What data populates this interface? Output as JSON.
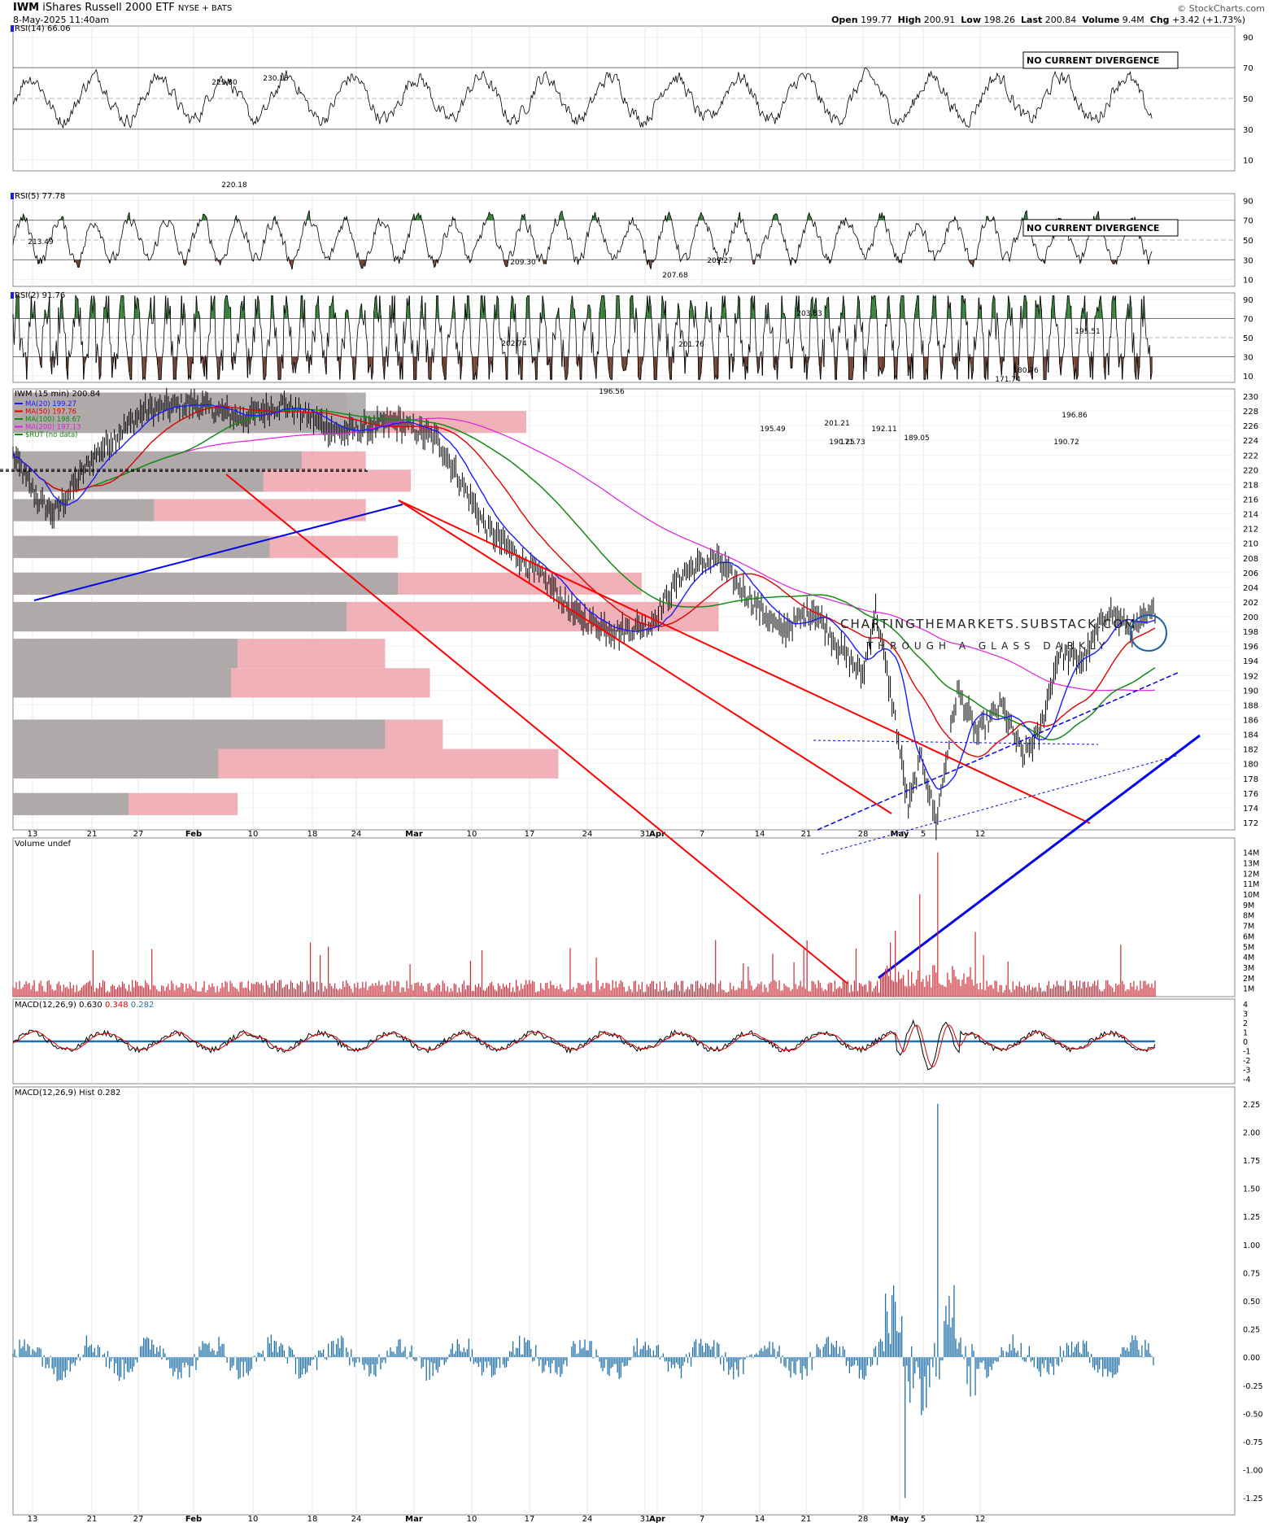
{
  "header": {
    "symbol": "IWM",
    "name": "iShares Russell 2000 ETF",
    "exchange": "NYSE + BATS",
    "date": "8-May-2025 11:40am",
    "open_label": "Open",
    "open": "199.77",
    "high_label": "High",
    "high": "200.91",
    "low_label": "Low",
    "low": "198.26",
    "last_label": "Last",
    "last": "200.84",
    "volume_label": "Volume",
    "volume": "9.4M",
    "chg_label": "Chg",
    "chg": "+3.42 (+1.73%)",
    "source": "© StockCharts.com"
  },
  "watermark": {
    "line1": "CHARTINGTHEMARKETS.SUBSTACK.COM",
    "line2": "THROUGH A GLASS DARKLY"
  },
  "colors": {
    "price_up": "#000000",
    "ma20": "#1a1aff",
    "ma50": "#e00000",
    "ma100": "#138a13",
    "ma200": "#e01ee0",
    "volume": "#cc2a36",
    "macd_hist": "#1f6fa8",
    "overbought_fill": "#2e7d32",
    "oversold_fill": "#6d3b2a",
    "trend_red": "#ff0000",
    "trend_blue": "#0000ee"
  },
  "x_ticks": [
    "13",
    "21",
    "27",
    "Feb",
    "10",
    "18",
    "24",
    "Mar",
    "10",
    "17",
    "24",
    "31",
    "Apr",
    "7",
    "14",
    "21",
    "28",
    "May",
    "5",
    "12"
  ],
  "panels": {
    "rsi14": {
      "label": "RSI(14) 66.06",
      "box": "NO CURRENT DIVERGENCE",
      "ticks": [
        "90",
        "70",
        "50",
        "30",
        "10"
      ]
    },
    "rsi5": {
      "label": "RSI(5) 77.78",
      "box": "NO CURRENT DIVERGENCE",
      "ticks": [
        "90",
        "70",
        "50",
        "30",
        "10"
      ]
    },
    "rsi2": {
      "label": "RSI(2) 91.76",
      "ticks": [
        "90",
        "70",
        "50",
        "30",
        "10"
      ]
    },
    "price": {
      "label": "IWM (15 min) 200.84",
      "legend": [
        {
          "text": "MA(20) 199.27",
          "key": "ma20"
        },
        {
          "text": "MA(50) 197.76",
          "key": "ma50"
        },
        {
          "text": "MA(100) 198.67",
          "key": "ma100"
        },
        {
          "text": "MA(200) 197.13",
          "key": "ma200"
        },
        {
          "text": "$RUT (no data)",
          "key": "ma100"
        }
      ],
      "ticks": [
        "230",
        "228",
        "226",
        "224",
        "222",
        "220",
        "218",
        "216",
        "214",
        "212",
        "210",
        "208",
        "206",
        "204",
        "202",
        "200",
        "198",
        "196",
        "194",
        "192",
        "190",
        "188",
        "186",
        "184",
        "182",
        "180",
        "178",
        "176",
        "174",
        "172"
      ],
      "annotations": [
        "229.80",
        "230.18",
        "220.18",
        "213.49",
        "209.30",
        "207.68",
        "209.27",
        "202.74",
        "201.76",
        "196.56",
        "203.33",
        "195.49",
        "192.11",
        "190.25",
        "189.05",
        "171.73",
        "171.74",
        "180.76",
        "195.51",
        "196.86",
        "201.21",
        "190.72"
      ]
    },
    "volume": {
      "label": "Volume undef",
      "ticks": [
        "14M",
        "13M",
        "12M",
        "11M",
        "10M",
        "9M",
        "8M",
        "7M",
        "6M",
        "5M",
        "4M",
        "3M",
        "2M",
        "1M"
      ]
    },
    "macd": {
      "label_prefix": "MACD(12,26,9)",
      "v1": "0.630",
      "v2": "0.348",
      "v3": "0.282",
      "ticks": [
        "4",
        "3",
        "2",
        "1",
        "0",
        "-1",
        "-2",
        "-3",
        "-4"
      ]
    },
    "hist": {
      "label": "MACD(12,26,9) Hist 0.282",
      "ticks": [
        "2.25",
        "2.00",
        "1.75",
        "1.50",
        "1.25",
        "1.00",
        "0.75",
        "0.50",
        "0.25",
        "0.00",
        "-0.25",
        "-0.50",
        "-0.75",
        "-1.00",
        "-1.25"
      ]
    }
  },
  "chart_data": {
    "type": "line",
    "title": "IWM (15 min)",
    "x": [
      "13",
      "21",
      "27",
      "Feb",
      "10",
      "18",
      "24",
      "Mar",
      "10",
      "17",
      "24",
      "31",
      "Apr",
      "7",
      "14",
      "21",
      "28",
      "May",
      "5"
    ],
    "series": [
      {
        "name": "IWM",
        "values": [
          214,
          227,
          229,
          229,
          228,
          226,
          222,
          205,
          197,
          204,
          209,
          196,
          190,
          172,
          186,
          182,
          196,
          201,
          200.84
        ]
      }
    ],
    "ylim": [
      171,
      231
    ],
    "volume_by_price_ranges": [
      [
        228,
        230.5,
        0.55,
        0.52
      ],
      [
        225,
        228,
        0.58,
        0.8
      ],
      [
        220,
        222.5,
        0.45,
        0.55
      ],
      [
        217,
        220,
        0.39,
        0.62
      ],
      [
        213,
        216,
        0.22,
        0.55
      ],
      [
        208,
        211,
        0.4,
        0.6
      ],
      [
        203,
        206,
        0.6,
        0.98
      ],
      [
        198,
        202,
        0.52,
        1.1
      ],
      [
        193,
        197,
        0.35,
        0.58
      ],
      [
        189,
        193,
        0.34,
        0.65
      ],
      [
        182,
        186,
        0.58,
        0.67
      ],
      [
        178,
        182,
        0.32,
        0.85
      ],
      [
        173,
        176,
        0.18,
        0.35
      ]
    ]
  }
}
